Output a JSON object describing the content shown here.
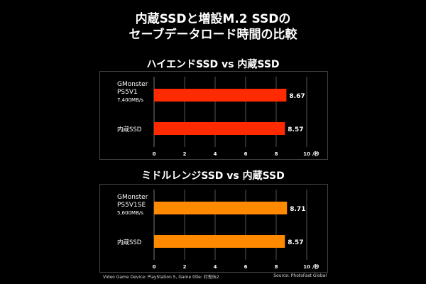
{
  "title": [
    "内蔵SSDと増設M.2 SSDの",
    "セーブデータロード時間の比較"
  ],
  "chart_data": [
    {
      "type": "bar",
      "orientation": "horizontal",
      "title": "ハイエンドSSD vs 内蔵SSD",
      "categories": [
        [
          "GMonster",
          "PS5V1",
          "7,400MB/s"
        ],
        [
          "内蔵SSD"
        ]
      ],
      "values": [
        8.67,
        8.57
      ],
      "labels": [
        "8.67",
        "8.57"
      ],
      "xlim": [
        0,
        10
      ],
      "xticks": [
        "0",
        "2",
        "4",
        "6",
        "8",
        "10"
      ],
      "xunit": "/秒",
      "color": "#ff2a00"
    },
    {
      "type": "bar",
      "orientation": "horizontal",
      "title": "ミドルレンジSSD vs 内蔵SSD",
      "categories": [
        [
          "GMonster",
          "PS5V1SE",
          "5,600MB/s"
        ],
        [
          "内蔵SSD"
        ]
      ],
      "values": [
        8.71,
        8.57
      ],
      "labels": [
        "8.71",
        "8.57"
      ],
      "xlim": [
        0,
        10
      ],
      "xticks": [
        "0",
        "2",
        "4",
        "6",
        "8",
        "10"
      ],
      "xunit": "/秒",
      "color": "#ff8a00"
    }
  ],
  "footer": {
    "device": "Video Game Device: PlayStation 5, Game title: 討鬼伝2",
    "source": "Source: PhotoFast Global"
  }
}
